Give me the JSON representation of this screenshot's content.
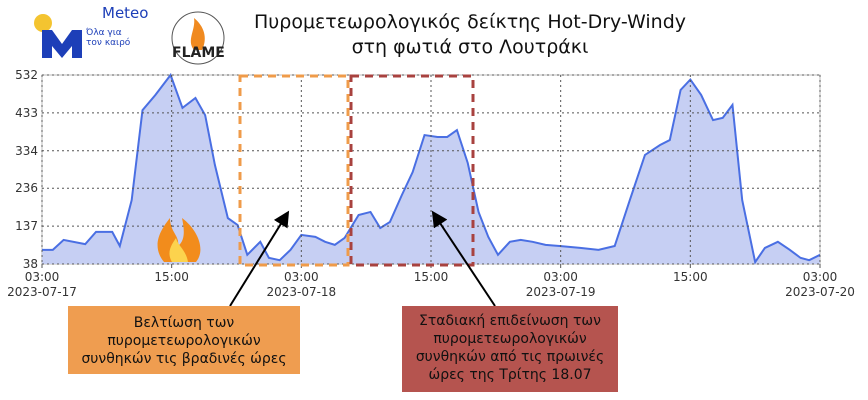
{
  "chart_data": {
    "type": "area",
    "title": "Πυρομετεωρολογικός δείκτης Hot-Dry-Windy\nστη φωτιά στο Λουτράκι",
    "logo_name": "Meteo",
    "logo_slogan": "Όλα για\nτον καιρό",
    "logo2_name": "FLAME",
    "x": [
      0,
      1,
      2,
      4,
      5,
      6.5,
      7.2,
      8.3,
      9.3,
      10.5,
      11.9,
      13,
      14.2,
      15.1,
      16,
      17.2,
      18.1,
      19,
      20.2,
      21,
      22,
      23,
      24,
      25.3,
      26.2,
      27.1,
      28,
      29.3,
      30.4,
      31.3,
      32.2,
      33.3,
      34.3,
      35.4,
      36.6,
      37.5,
      38.4,
      39.4,
      40.4,
      41.3,
      42.2,
      43.3,
      44.3,
      45.4,
      46.6,
      47.9,
      49.8,
      51.5,
      53,
      54.4,
      55.8,
      57.2,
      58.1,
      59.1,
      60,
      61,
      62.1,
      63,
      63.9,
      64.8,
      66,
      66.9,
      68.1,
      69.2,
      70.2,
      71,
      72
    ],
    "values": [
      75,
      75,
      101,
      90,
      122,
      122,
      85,
      205,
      440,
      480,
      532,
      446,
      472,
      427,
      297,
      158,
      140,
      62,
      96,
      54,
      48,
      75,
      114,
      109,
      96,
      88,
      106,
      166,
      174,
      132,
      148,
      218,
      278,
      375,
      370,
      370,
      388,
      302,
      174,
      109,
      62,
      96,
      101,
      96,
      88,
      85,
      80,
      75,
      85,
      205,
      323,
      349,
      362,
      493,
      520,
      480,
      414,
      420,
      454,
      205,
      43,
      80,
      96,
      75,
      54,
      48,
      62
    ],
    "color": "#4a6fe3",
    "fill": "#c6cff3",
    "xlim": [
      0,
      72
    ],
    "xticks": [
      {
        "value": 0,
        "label": "03:00\n2023-07-17"
      },
      {
        "value": 12,
        "label": "15:00"
      },
      {
        "value": 24,
        "label": "03:00\n2023-07-18"
      },
      {
        "value": 36,
        "label": "15:00"
      },
      {
        "value": 48,
        "label": "03:00\n2023-07-19"
      },
      {
        "value": 60,
        "label": "15:00"
      },
      {
        "value": 72,
        "label": "03:00\n2023-07-20"
      }
    ],
    "ylim": [
      38,
      532
    ],
    "yticks": [
      38,
      137,
      236,
      334,
      433,
      532
    ],
    "grid": true,
    "annotations": [
      "Βελτίωση των\nπυρομετεωρολογικών\nσυνθηκών τις βραδινές ώρες",
      "Σταδιακή επιδείνωση των\nπυρομετεωρολογικών\nσυνθηκών  από τις πρωινές\nώρες της Τρίτης 18.07"
    ]
  }
}
